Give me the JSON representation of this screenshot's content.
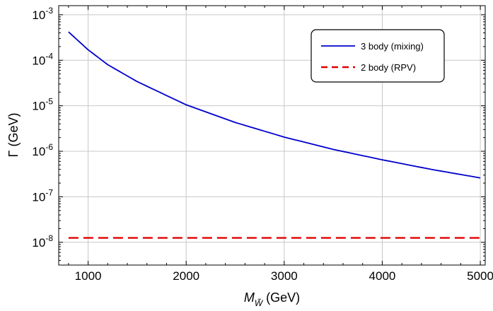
{
  "chart_data": {
    "type": "line",
    "title": "",
    "xlabel": {
      "main": "M",
      "sub": "W̃",
      "unit": " (GeV)"
    },
    "ylabel": "Γ (GeV)",
    "xlim": [
      700,
      5050
    ],
    "ylim_log10": [
      -8.5,
      -2.8
    ],
    "yscale": "log",
    "grid": true,
    "legend_position": "top-right",
    "x_ticks": [
      1000,
      2000,
      3000,
      4000,
      5000
    ],
    "y_ticks": [
      {
        "exp": -8,
        "base": "10",
        "sup": "-8"
      },
      {
        "exp": -7,
        "base": "10",
        "sup": "-7"
      },
      {
        "exp": -6,
        "base": "10",
        "sup": "-6"
      },
      {
        "exp": -5,
        "base": "10",
        "sup": "-5"
      },
      {
        "exp": -4,
        "base": "10",
        "sup": "-4"
      },
      {
        "exp": -3,
        "base": "10",
        "sup": "-3"
      }
    ],
    "series": [
      {
        "name": "3 body (mixing)",
        "color": "#0000cc",
        "dash": "solid",
        "x": [
          800,
          1000,
          1200,
          1500,
          2000,
          2500,
          3000,
          3500,
          4000,
          4500,
          5000
        ],
        "y": [
          0.00042,
          0.00017,
          8e-05,
          3.4e-05,
          1.05e-05,
          4.3e-06,
          2.05e-06,
          1.1e-06,
          6.5e-07,
          4e-07,
          2.6e-07
        ]
      },
      {
        "name": "2 body (RPV)",
        "color": "#e00000",
        "dash": "dashed",
        "x": [
          800,
          5000
        ],
        "y": [
          1.25e-08,
          1.25e-08
        ]
      }
    ]
  }
}
